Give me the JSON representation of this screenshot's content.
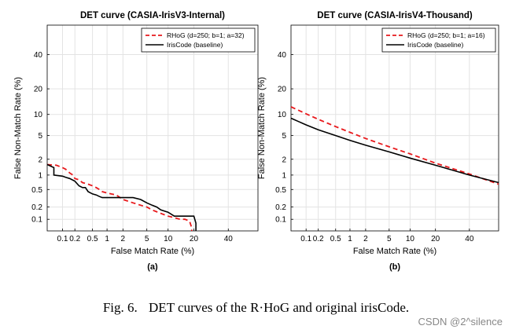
{
  "chart_data": [
    {
      "type": "line",
      "panel_label": "(a)",
      "title": "DET curve (CASIA-IrisV3-Internal)",
      "xlabel": "False Match Rate (%)",
      "ylabel": "False Non-Match Rate (%)",
      "x_scale": "probit",
      "y_scale": "probit",
      "xlim": [
        0.04,
        60
      ],
      "ylim": [
        0.05,
        60
      ],
      "x_ticks": [
        0.1,
        0.2,
        0.5,
        1,
        2,
        5,
        10,
        20,
        40
      ],
      "x_tick_labels": [
        "0.1",
        "0.2",
        "0.5",
        "1",
        "2",
        "5",
        "10",
        "20",
        "40"
      ],
      "y_ticks": [
        0.1,
        0.2,
        0.5,
        1,
        2,
        5,
        10,
        20,
        40
      ],
      "y_tick_labels": [
        "0.1",
        "0.2",
        "0.5",
        "1",
        "2",
        "5",
        "10",
        "20",
        "40"
      ],
      "grid": true,
      "legend_position": "top-right",
      "series": [
        {
          "name": "RHoG (d=250; b=1; a=32)",
          "color": "#e8191c",
          "dash": true,
          "x": [
            0.04,
            0.07,
            0.1,
            0.12,
            0.15,
            0.18,
            0.2,
            0.25,
            0.3,
            0.4,
            0.5,
            0.6,
            0.7,
            0.8,
            1.0,
            1.2,
            1.5,
            2.0,
            3.0,
            4.0,
            5.0,
            6.0,
            8.0,
            10.0,
            12.0,
            14.0,
            16.0,
            18.0,
            19.0,
            19.0
          ],
          "y": [
            1.6,
            1.55,
            1.4,
            1.3,
            1.1,
            1.0,
            0.85,
            0.8,
            0.7,
            0.65,
            0.6,
            0.55,
            0.5,
            0.45,
            0.42,
            0.4,
            0.38,
            0.3,
            0.25,
            0.22,
            0.2,
            0.17,
            0.14,
            0.12,
            0.11,
            0.1,
            0.1,
            0.09,
            0.06,
            0.05
          ]
        },
        {
          "name": "IrisCode (baseline)",
          "color": "#000000",
          "dash": false,
          "x": [
            0.04,
            0.06,
            0.06,
            0.1,
            0.12,
            0.15,
            0.2,
            0.25,
            0.3,
            0.35,
            0.4,
            0.5,
            0.6,
            0.7,
            0.8,
            1.0,
            1.5,
            2.0,
            3.0,
            4.0,
            5.0,
            6.0,
            7.0,
            8.0,
            10.0,
            12.0,
            14.0,
            18.0,
            20.0,
            21.0,
            21.0
          ],
          "y": [
            1.6,
            1.4,
            1.0,
            0.95,
            0.9,
            0.85,
            0.75,
            0.6,
            0.55,
            0.55,
            0.45,
            0.4,
            0.38,
            0.35,
            0.33,
            0.33,
            0.33,
            0.33,
            0.33,
            0.3,
            0.25,
            0.22,
            0.2,
            0.17,
            0.15,
            0.12,
            0.12,
            0.12,
            0.12,
            0.08,
            0.05
          ]
        }
      ]
    },
    {
      "type": "line",
      "panel_label": "(b)",
      "title": "DET curve (CASIA-IrisV4-Thousand)",
      "xlabel": "False Match Rate (%)",
      "ylabel": "False Non-Match Rate (%)",
      "x_scale": "probit",
      "y_scale": "probit",
      "xlim": [
        0.04,
        60
      ],
      "ylim": [
        0.05,
        60
      ],
      "x_ticks": [
        0.1,
        0.2,
        0.5,
        1,
        2,
        5,
        10,
        20,
        40
      ],
      "x_tick_labels": [
        "0.1",
        "0.2",
        "0.5",
        "1",
        "2",
        "5",
        "10",
        "20",
        "40"
      ],
      "y_ticks": [
        0.1,
        0.2,
        0.5,
        1,
        2,
        5,
        10,
        20,
        40
      ],
      "y_tick_labels": [
        "0.1",
        "0.2",
        "0.5",
        "1",
        "2",
        "5",
        "10",
        "20",
        "40"
      ],
      "grid": true,
      "legend_position": "top-right",
      "series": [
        {
          "name": "RHoG (d=250; b=1; a=16)",
          "color": "#e8191c",
          "dash": true,
          "x": [
            0.04,
            0.1,
            0.2,
            0.5,
            1,
            2,
            5,
            10,
            20,
            40,
            60
          ],
          "y": [
            12.5,
            10.2,
            8.6,
            6.8,
            5.6,
            4.5,
            3.3,
            2.5,
            1.7,
            1.05,
            0.65
          ]
        },
        {
          "name": "IrisCode (baseline)",
          "color": "#000000",
          "dash": false,
          "x": [
            0.04,
            0.1,
            0.2,
            0.5,
            1,
            2,
            5,
            10,
            20,
            40,
            60
          ],
          "y": [
            8.9,
            7.2,
            6.1,
            5.0,
            4.2,
            3.5,
            2.7,
            2.1,
            1.55,
            1.0,
            0.7
          ]
        }
      ]
    }
  ],
  "caption": {
    "label": "Fig. 6.",
    "text": "DET curves of the R·HoG and original irisCode."
  },
  "watermark": "CSDN @2^silence"
}
